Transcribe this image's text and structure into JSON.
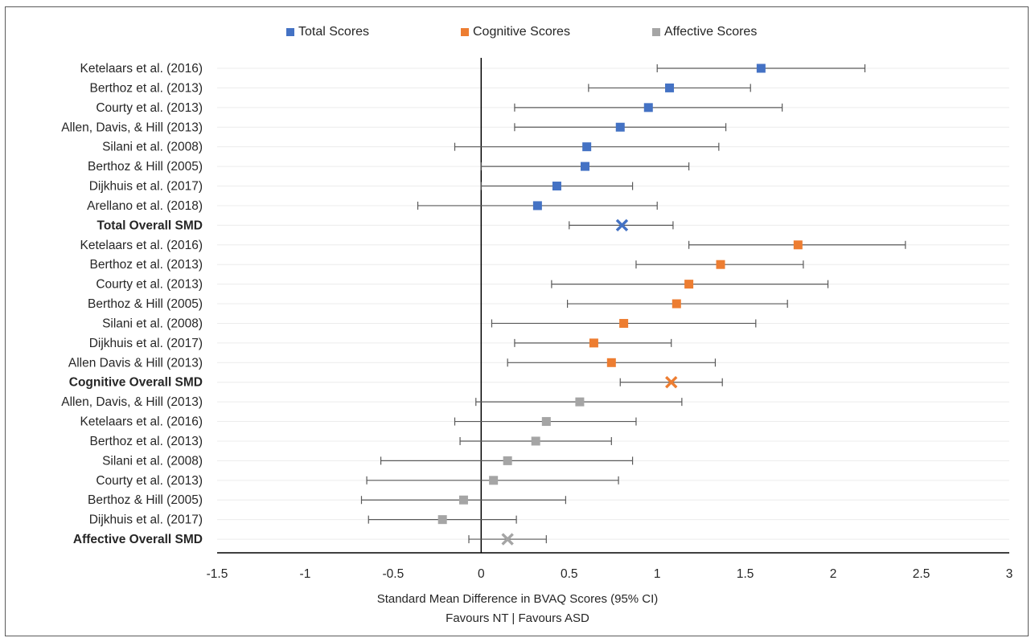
{
  "chart_data": {
    "type": "forest",
    "xlabel_line1": "Standard Mean Difference in BVAQ Scores (95% CI)",
    "xlabel_line2": "Favours NT | Favours ASD",
    "xlim": [
      -1.5,
      3
    ],
    "xticks": [
      "-1.5",
      "-1",
      "-0.5",
      "0",
      "0.5",
      "1",
      "1.5",
      "2",
      "2.5",
      "3"
    ],
    "legend_position": "top",
    "series": [
      {
        "name": "Total Scores",
        "color": "#4472C4"
      },
      {
        "name": "Cognitive Scores",
        "color": "#ED7D31"
      },
      {
        "name": "Affective Scores",
        "color": "#A5A5A5"
      }
    ],
    "rows": [
      {
        "label": "Ketelaars et al. (2016)",
        "series": 0,
        "est": 1.59,
        "lo": 1.0,
        "hi": 2.18,
        "bold": false,
        "summary": false
      },
      {
        "label": "Berthoz et al. (2013)",
        "series": 0,
        "est": 1.07,
        "lo": 0.61,
        "hi": 1.53,
        "bold": false,
        "summary": false
      },
      {
        "label": "Courty et al. (2013)",
        "series": 0,
        "est": 0.95,
        "lo": 0.19,
        "hi": 1.71,
        "bold": false,
        "summary": false
      },
      {
        "label": "Allen, Davis, & Hill (2013)",
        "series": 0,
        "est": 0.79,
        "lo": 0.19,
        "hi": 1.39,
        "bold": false,
        "summary": false
      },
      {
        "label": "Silani et al. (2008)",
        "series": 0,
        "est": 0.6,
        "lo": -0.15,
        "hi": 1.35,
        "bold": false,
        "summary": false
      },
      {
        "label": "Berthoz & Hill (2005)",
        "series": 0,
        "est": 0.59,
        "lo": 0.0,
        "hi": 1.18,
        "bold": false,
        "summary": false
      },
      {
        "label": "Dijkhuis et al. (2017)",
        "series": 0,
        "est": 0.43,
        "lo": 0.0,
        "hi": 0.86,
        "bold": false,
        "summary": false
      },
      {
        "label": "Arellano et al. (2018)",
        "series": 0,
        "est": 0.32,
        "lo": -0.36,
        "hi": 1.0,
        "bold": false,
        "summary": false
      },
      {
        "label": "Total Overall SMD",
        "series": 0,
        "est": 0.8,
        "lo": 0.5,
        "hi": 1.09,
        "bold": true,
        "summary": true
      },
      {
        "label": "Ketelaars et al. (2016)",
        "series": 1,
        "est": 1.8,
        "lo": 1.18,
        "hi": 2.41,
        "bold": false,
        "summary": false
      },
      {
        "label": "Berthoz et al. (2013)",
        "series": 1,
        "est": 1.36,
        "lo": 0.88,
        "hi": 1.83,
        "bold": false,
        "summary": false
      },
      {
        "label": "Courty et al. (2013)",
        "series": 1,
        "est": 1.18,
        "lo": 0.4,
        "hi": 1.97,
        "bold": false,
        "summary": false
      },
      {
        "label": "Berthoz & Hill (2005)",
        "series": 1,
        "est": 1.11,
        "lo": 0.49,
        "hi": 1.74,
        "bold": false,
        "summary": false
      },
      {
        "label": "Silani et al. (2008)",
        "series": 1,
        "est": 0.81,
        "lo": 0.06,
        "hi": 1.56,
        "bold": false,
        "summary": false
      },
      {
        "label": "Dijkhuis et al. (2017)",
        "series": 1,
        "est": 0.64,
        "lo": 0.19,
        "hi": 1.08,
        "bold": false,
        "summary": false
      },
      {
        "label": "Allen Davis & Hill (2013)",
        "series": 1,
        "est": 0.74,
        "lo": 0.15,
        "hi": 1.33,
        "bold": false,
        "summary": false
      },
      {
        "label": "Cognitive Overall SMD",
        "series": 1,
        "est": 1.08,
        "lo": 0.79,
        "hi": 1.37,
        "bold": true,
        "summary": true
      },
      {
        "label": "Allen, Davis, & Hill (2013)",
        "series": 2,
        "est": 0.56,
        "lo": -0.03,
        "hi": 1.14,
        "bold": false,
        "summary": false
      },
      {
        "label": "Ketelaars et al. (2016)",
        "series": 2,
        "est": 0.37,
        "lo": -0.15,
        "hi": 0.88,
        "bold": false,
        "summary": false
      },
      {
        "label": "Berthoz et al. (2013)",
        "series": 2,
        "est": 0.31,
        "lo": -0.12,
        "hi": 0.74,
        "bold": false,
        "summary": false
      },
      {
        "label": "Silani et al. (2008)",
        "series": 2,
        "est": 0.15,
        "lo": -0.57,
        "hi": 0.86,
        "bold": false,
        "summary": false
      },
      {
        "label": "Courty et al. (2013)",
        "series": 2,
        "est": 0.07,
        "lo": -0.65,
        "hi": 0.78,
        "bold": false,
        "summary": false
      },
      {
        "label": "Berthoz & Hill (2005)",
        "series": 2,
        "est": -0.1,
        "lo": -0.68,
        "hi": 0.48,
        "bold": false,
        "summary": false
      },
      {
        "label": "Dijkhuis et al. (2017)",
        "series": 2,
        "est": -0.22,
        "lo": -0.64,
        "hi": 0.2,
        "bold": false,
        "summary": false
      },
      {
        "label": "Affective Overall SMD",
        "series": 2,
        "est": 0.15,
        "lo": -0.07,
        "hi": 0.37,
        "bold": true,
        "summary": true
      }
    ]
  }
}
